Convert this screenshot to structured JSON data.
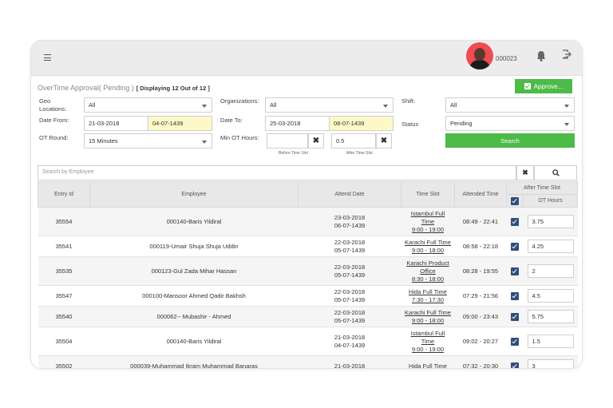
{
  "header": {
    "user_id": "000023"
  },
  "page": {
    "title": "OverTime Approval( Pending )",
    "display_count": "[ Displaying 12 Out of 12 ]",
    "approve_label": "Approve..."
  },
  "filters": {
    "geo_label": "Geo Locations:",
    "geo_value": "All",
    "org_label": "Organizations:",
    "org_value": "All",
    "shift_label": "Shift:",
    "shift_value": "All",
    "date_from_label": "Date From:",
    "date_from_value": "21-03-2018",
    "date_from_alt": "04-07-1439",
    "date_to_label": "Date To:",
    "date_to_value": "25-03-2018",
    "date_to_alt": "08-07-1439",
    "status_label": "Status",
    "status_value": "Pending",
    "ot_round_label": "OT Round:",
    "ot_round_value": "15 Minutes",
    "min_ot_label": "Min OT Hours:",
    "before_slot_value": "",
    "after_slot_value": "0.5",
    "before_slot_label": "Before Time Slot",
    "after_slot_label": "After Time Slot",
    "clear_glyph": "✖",
    "search_label": "Search"
  },
  "search": {
    "placeholder": "Search by Employee",
    "clear_glyph": "✖"
  },
  "table": {
    "headers": {
      "entry_id": "Entry Id",
      "employee": "Employee",
      "attend_date": "Attend Date",
      "time_slot": "Time Slot",
      "attended_time": "Attended Time",
      "after_time_slot": "After Time Slot",
      "ot_hours": "OT Hours"
    },
    "rows": [
      {
        "id": "35554",
        "employee": "000140-Baris Yildiral",
        "date1": "23-03-2018",
        "date2": "06-07-1439",
        "slot": [
          "Istambul Full",
          "Time"
        ],
        "slot_time": "9:00 - 19:00",
        "attended": "08:49 - 22:41",
        "hours": "3.75"
      },
      {
        "id": "35541",
        "employee": "000119-Umair Shuja Shuja Uddin",
        "date1": "22-03-2018",
        "date2": "05-07-1439",
        "slot": [
          "Karachi Full Time"
        ],
        "slot_time": "9:00 - 18:00",
        "attended": "08:58 - 22:18",
        "hours": "4.25"
      },
      {
        "id": "35535",
        "employee": "000123-Gul Zada Mihar Hassan",
        "date1": "22-03-2018",
        "date2": "05-07-1439",
        "slot": [
          "Karachi Product",
          "Office"
        ],
        "slot_time": "8:30 - 18:00",
        "attended": "08:28 - 19:55",
        "hours": "2"
      },
      {
        "id": "35547",
        "employee": "000100-Mansoor Ahmed Qadir Bakhsh",
        "date1": "22-03-2018",
        "date2": "05-07-1439",
        "slot": [
          "Hida Full Time"
        ],
        "slot_time": "7:30 - 17:30",
        "attended": "07:29 - 21:56",
        "hours": "4.5"
      },
      {
        "id": "35540",
        "employee": "000062-- Mubashir - Ahmed",
        "date1": "22-03-2018",
        "date2": "05-07-1439",
        "slot": [
          "Karachi Full Time"
        ],
        "slot_time": "9:00 - 18:00",
        "attended": "09:00 - 23:43",
        "hours": "5.75"
      },
      {
        "id": "35504",
        "employee": "000140-Baris Yildiral",
        "date1": "21-03-2018",
        "date2": "04-07-1439",
        "slot": [
          "Istambul Full",
          "Time"
        ],
        "slot_time": "9:00 - 19:00",
        "attended": "09:02 - 20:27",
        "hours": "1.5"
      },
      {
        "id": "35502",
        "employee": "000039-Muhammad Ikram Muhammad Banaras",
        "date1": "21-03-2018",
        "date2": "",
        "slot": [
          "Hida Full Time"
        ],
        "slot_time": "",
        "attended": "07:32 - 20:30",
        "hours": "3"
      }
    ]
  }
}
